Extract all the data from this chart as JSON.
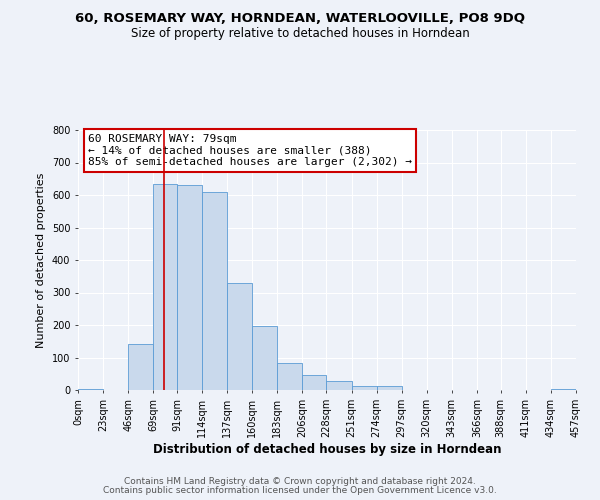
{
  "title": "60, ROSEMARY WAY, HORNDEAN, WATERLOOVILLE, PO8 9DQ",
  "subtitle": "Size of property relative to detached houses in Horndean",
  "xlabel": "Distribution of detached houses by size in Horndean",
  "ylabel": "Number of detached properties",
  "bin_edges": [
    0,
    23,
    46,
    69,
    91,
    114,
    137,
    160,
    183,
    206,
    228,
    251,
    274,
    297,
    320,
    343,
    366,
    388,
    411,
    434,
    457
  ],
  "bin_labels": [
    "0sqm",
    "23sqm",
    "46sqm",
    "69sqm",
    "91sqm",
    "114sqm",
    "137sqm",
    "160sqm",
    "183sqm",
    "206sqm",
    "228sqm",
    "251sqm",
    "274sqm",
    "297sqm",
    "320sqm",
    "343sqm",
    "366sqm",
    "388sqm",
    "411sqm",
    "434sqm",
    "457sqm"
  ],
  "counts": [
    3,
    0,
    143,
    635,
    632,
    609,
    330,
    198,
    83,
    45,
    27,
    13,
    12,
    0,
    0,
    0,
    0,
    0,
    0,
    3
  ],
  "bar_color": "#c9d9ec",
  "bar_edge_color": "#5b9bd5",
  "vline_x": 79,
  "vline_color": "#cc0000",
  "ylim": [
    0,
    800
  ],
  "yticks": [
    0,
    100,
    200,
    300,
    400,
    500,
    600,
    700,
    800
  ],
  "annotation_line1": "60 ROSEMARY WAY: 79sqm",
  "annotation_line2": "← 14% of detached houses are smaller (388)",
  "annotation_line3": "85% of semi-detached houses are larger (2,302) →",
  "footer_line1": "Contains HM Land Registry data © Crown copyright and database right 2024.",
  "footer_line2": "Contains public sector information licensed under the Open Government Licence v3.0.",
  "background_color": "#eef2f9",
  "grid_color": "#ffffff",
  "title_fontsize": 9.5,
  "subtitle_fontsize": 8.5,
  "xlabel_fontsize": 8.5,
  "ylabel_fontsize": 8,
  "tick_fontsize": 7,
  "annotation_fontsize": 8,
  "footer_fontsize": 6.5
}
